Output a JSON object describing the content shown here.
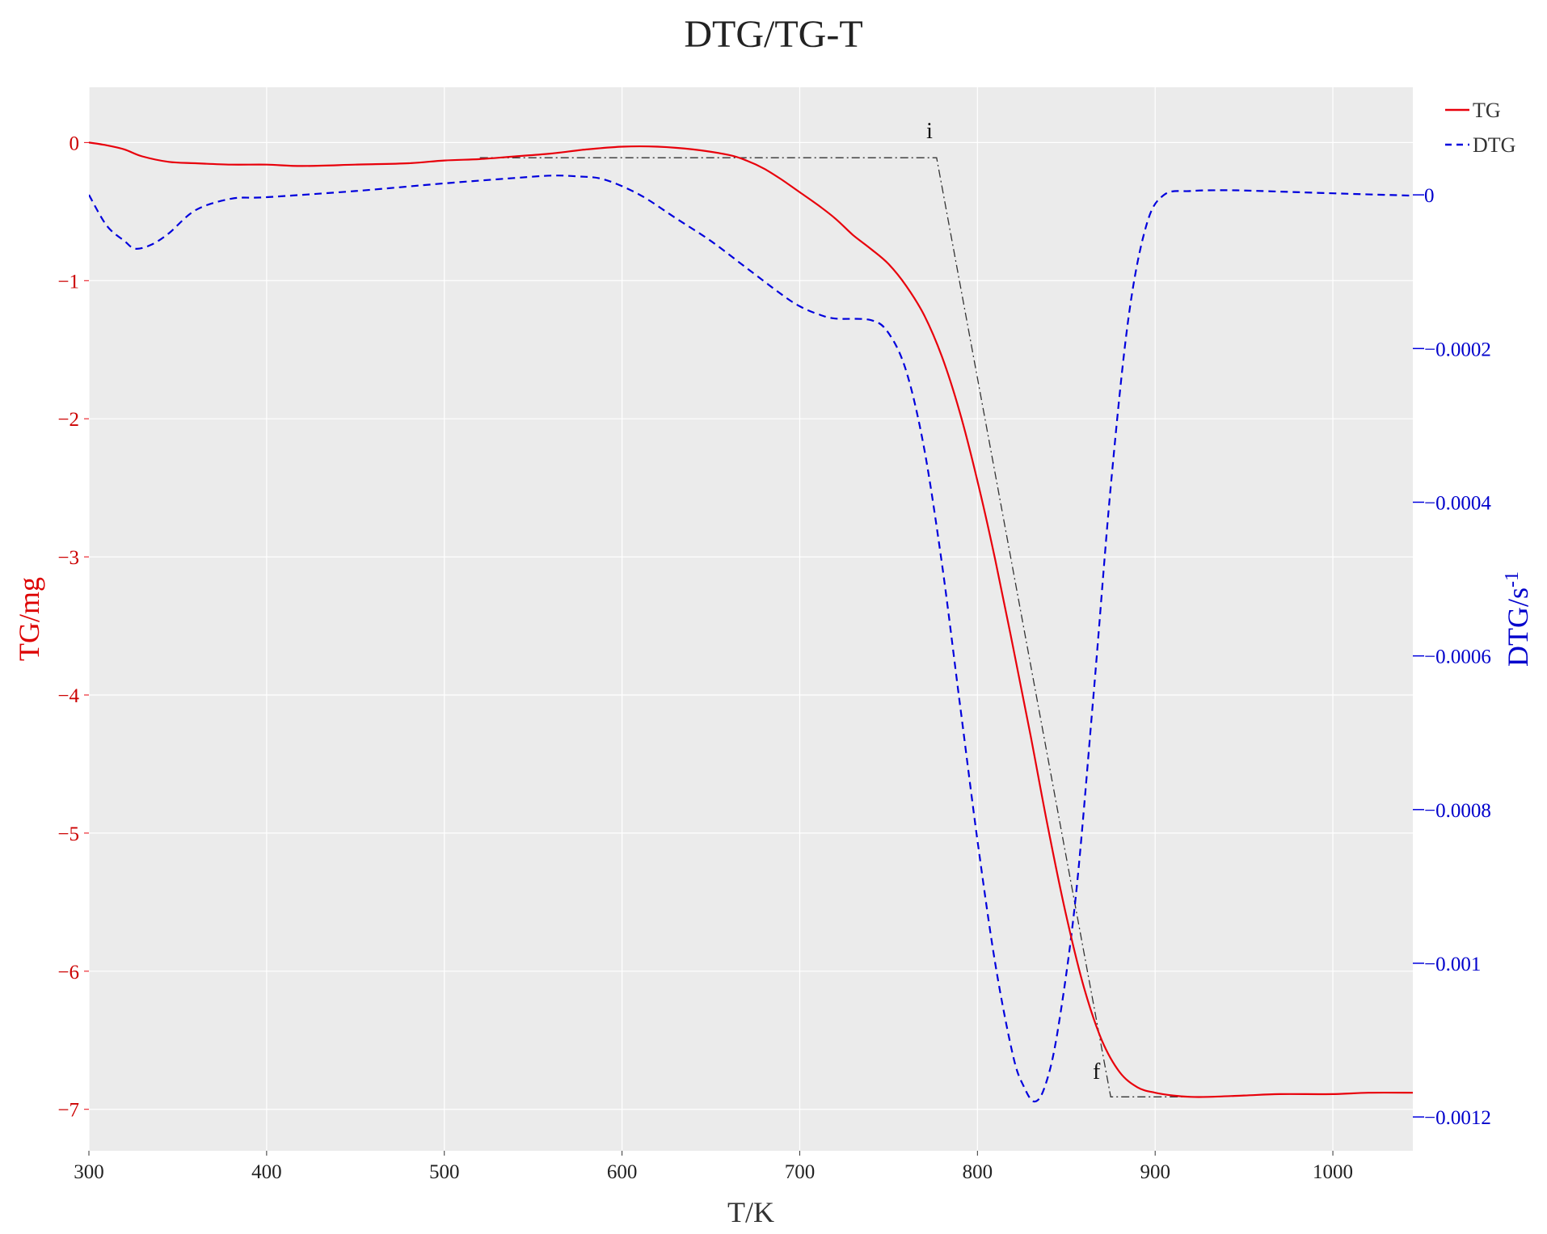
{
  "chart_data": {
    "type": "line",
    "title": "DTG/TG-T",
    "xlabel": "T/K",
    "ylabel_left": "TG/mg",
    "ylabel_right_main": "DTG/s",
    "ylabel_right_sup": "-1",
    "xlim": [
      300,
      1045
    ],
    "ylim_left": [
      -7.3,
      0.4
    ],
    "ylim_right": [
      -0.001244,
      0.00014
    ],
    "xticks": [
      300,
      400,
      500,
      600,
      700,
      800,
      900,
      1000
    ],
    "xtick_labels": [
      "300",
      "400",
      "500",
      "600",
      "700",
      "800",
      "900",
      "1000"
    ],
    "yticks_left": [
      0,
      -1,
      -2,
      -3,
      -4,
      -5,
      -6,
      -7
    ],
    "ytick_labels_left": [
      "0",
      "−1",
      "−2",
      "−3",
      "−4",
      "−5",
      "−6",
      "−7"
    ],
    "yticks_right": [
      0,
      -0.0002,
      -0.0004,
      -0.0006,
      -0.0008,
      -0.001,
      -0.0012
    ],
    "ytick_labels_right": [
      "0",
      "−0.0002",
      "−0.0004",
      "−0.0006",
      "−0.0008",
      "−0.001",
      "−0.0012"
    ],
    "grid": true,
    "legend_position": "top-right",
    "colors": {
      "tg": "#e8000b",
      "dtg": "#0000dd",
      "tangent": "#333333",
      "plot_bg": "#ebebeb",
      "grid": "#ffffff"
    },
    "series": [
      {
        "name": "TG",
        "axis": "left",
        "style": "solid",
        "x": [
          300,
          310,
          320,
          330,
          345,
          360,
          380,
          400,
          420,
          450,
          480,
          500,
          520,
          540,
          560,
          580,
          600,
          620,
          640,
          660,
          670,
          680,
          690,
          700,
          710,
          720,
          730,
          740,
          750,
          760,
          770,
          780,
          790,
          800,
          810,
          820,
          830,
          840,
          850,
          860,
          870,
          880,
          890,
          900,
          910,
          920,
          930,
          950,
          970,
          1000,
          1020,
          1045
        ],
        "y": [
          0.0,
          -0.02,
          -0.05,
          -0.1,
          -0.14,
          -0.15,
          -0.16,
          -0.16,
          -0.17,
          -0.16,
          -0.15,
          -0.13,
          -0.12,
          -0.1,
          -0.08,
          -0.05,
          -0.03,
          -0.03,
          -0.05,
          -0.09,
          -0.13,
          -0.19,
          -0.27,
          -0.36,
          -0.45,
          -0.55,
          -0.67,
          -0.77,
          -0.88,
          -1.04,
          -1.25,
          -1.55,
          -1.95,
          -2.45,
          -3.02,
          -3.65,
          -4.3,
          -4.98,
          -5.6,
          -6.12,
          -6.5,
          -6.73,
          -6.84,
          -6.88,
          -6.9,
          -6.91,
          -6.91,
          -6.9,
          -6.89,
          -6.89,
          -6.88,
          -6.88
        ]
      },
      {
        "name": "DTG",
        "axis": "right",
        "style": "dashed",
        "x": [
          300,
          310,
          320,
          326,
          335,
          345,
          360,
          380,
          400,
          450,
          500,
          540,
          560,
          575,
          590,
          610,
          630,
          650,
          670,
          690,
          700,
          710,
          720,
          740,
          750,
          760,
          770,
          780,
          790,
          800,
          810,
          820,
          826,
          832,
          838,
          845,
          855,
          865,
          875,
          885,
          895,
          905,
          920,
          940,
          960,
          1000,
          1045
        ],
        "y": [
          0.0,
          -4e-05,
          -6e-05,
          -7e-05,
          -6.5e-05,
          -5e-05,
          -2e-05,
          -5e-06,
          -3e-06,
          5e-06,
          1.5e-05,
          2.2e-05,
          2.5e-05,
          2.4e-05,
          2e-05,
          0.0,
          -3e-05,
          -6e-05,
          -9.5e-05,
          -0.00013,
          -0.000145,
          -0.000155,
          -0.000161,
          -0.000163,
          -0.00018,
          -0.00023,
          -0.00033,
          -0.00048,
          -0.00066,
          -0.00084,
          -0.001,
          -0.00112,
          -0.00116,
          -0.00118,
          -0.00116,
          -0.00109,
          -0.00092,
          -0.00066,
          -0.00038,
          -0.00016,
          -4e-05,
          0.0,
          5e-06,
          6e-06,
          5e-06,
          2e-06,
          -1e-06
        ]
      }
    ],
    "tangent_line": {
      "x": [
        520,
        777,
        875,
        930
      ],
      "y": [
        -0.11,
        -0.11,
        -6.91,
        -6.91
      ]
    },
    "annotations": [
      {
        "text": "i",
        "x": 773,
        "y": 0.03
      },
      {
        "text": "f",
        "x": 867,
        "y": -6.78
      }
    ]
  }
}
